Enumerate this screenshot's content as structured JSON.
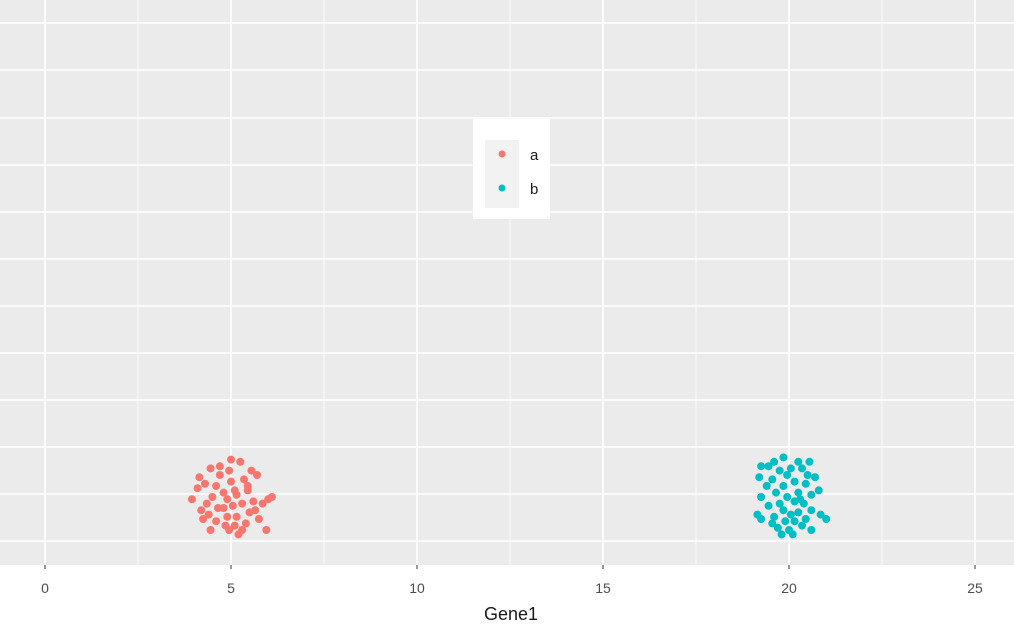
{
  "chart_data": {
    "type": "scatter",
    "title": "",
    "xlabel": "Gene1",
    "ylabel": "",
    "xlim": [
      0,
      25
    ],
    "x_ticks": [
      "0",
      "5",
      "10",
      "15",
      "20",
      "25"
    ],
    "grid": true,
    "legend_position": "top-center",
    "series": [
      {
        "name": "a",
        "color": "#F8766D",
        "points": [
          [
            4.95,
            0.12
          ],
          [
            5.25,
            0.16
          ],
          [
            5.7,
            0.1
          ],
          [
            4.7,
            0.1
          ],
          [
            5.35,
            0.08
          ],
          [
            4.45,
            0.13
          ],
          [
            5.0,
            0.07
          ],
          [
            4.6,
            0.05
          ],
          [
            5.45,
            0.03
          ],
          [
            4.8,
            0.02
          ],
          [
            4.3,
            0.06
          ],
          [
            5.15,
            0.01
          ],
          [
            4.1,
            0.04
          ],
          [
            5.6,
            -0.02
          ],
          [
            4.9,
            -0.01
          ],
          [
            4.35,
            -0.03
          ],
          [
            5.3,
            -0.03
          ],
          [
            5.05,
            -0.04
          ],
          [
            4.2,
            -0.06
          ],
          [
            5.85,
            -0.03
          ],
          [
            6.0,
            -0.01
          ],
          [
            3.95,
            -0.01
          ],
          [
            4.65,
            -0.05
          ],
          [
            5.5,
            -0.07
          ],
          [
            4.9,
            -0.09
          ],
          [
            4.25,
            -0.1
          ],
          [
            5.15,
            -0.09
          ],
          [
            5.75,
            -0.1
          ],
          [
            4.6,
            -0.11
          ],
          [
            5.4,
            -0.12
          ],
          [
            4.85,
            -0.13
          ],
          [
            5.1,
            -0.13
          ],
          [
            4.45,
            -0.15
          ],
          [
            4.95,
            -0.15
          ],
          [
            5.3,
            -0.15
          ],
          [
            5.2,
            -0.17
          ],
          [
            4.8,
            -0.05
          ],
          [
            5.1,
            0.03
          ],
          [
            4.5,
            0.0
          ],
          [
            5.55,
            0.12
          ],
          [
            6.1,
            0.0
          ],
          [
            4.7,
            0.14
          ],
          [
            5.0,
            0.17
          ],
          [
            5.45,
            0.05
          ],
          [
            4.4,
            -0.08
          ],
          [
            5.95,
            -0.15
          ],
          [
            4.15,
            0.09
          ],
          [
            5.65,
            -0.06
          ]
        ]
      },
      {
        "name": "b",
        "color": "#00BFC4",
        "points": [
          [
            19.85,
            0.18
          ],
          [
            20.25,
            0.16
          ],
          [
            20.55,
            0.16
          ],
          [
            19.45,
            0.14
          ],
          [
            20.05,
            0.13
          ],
          [
            19.25,
            0.14
          ],
          [
            19.75,
            0.12
          ],
          [
            20.35,
            0.13
          ],
          [
            20.7,
            0.09
          ],
          [
            19.2,
            0.09
          ],
          [
            19.95,
            0.1
          ],
          [
            20.15,
            0.07
          ],
          [
            19.55,
            0.08
          ],
          [
            20.45,
            0.06
          ],
          [
            19.4,
            0.05
          ],
          [
            19.85,
            0.05
          ],
          [
            20.25,
            0.02
          ],
          [
            19.65,
            0.02
          ],
          [
            20.6,
            0.01
          ],
          [
            19.25,
            0.0
          ],
          [
            19.95,
            0.0
          ],
          [
            20.15,
            -0.02
          ],
          [
            19.75,
            -0.03
          ],
          [
            20.4,
            -0.03
          ],
          [
            19.45,
            -0.04
          ],
          [
            20.6,
            -0.06
          ],
          [
            19.85,
            -0.06
          ],
          [
            20.25,
            -0.07
          ],
          [
            19.15,
            -0.08
          ],
          [
            20.05,
            -0.08
          ],
          [
            19.6,
            -0.09
          ],
          [
            20.85,
            -0.08
          ],
          [
            20.45,
            -0.1
          ],
          [
            19.25,
            -0.1
          ],
          [
            19.9,
            -0.11
          ],
          [
            20.15,
            -0.11
          ],
          [
            20.35,
            -0.13
          ],
          [
            19.7,
            -0.14
          ],
          [
            20.6,
            -0.15
          ],
          [
            20.0,
            -0.15
          ],
          [
            19.8,
            -0.17
          ],
          [
            20.1,
            -0.17
          ],
          [
            20.5,
            0.1
          ],
          [
            19.55,
            -0.12
          ],
          [
            21.0,
            -0.1
          ],
          [
            20.8,
            0.03
          ],
          [
            20.3,
            -0.01
          ],
          [
            19.6,
            0.16
          ]
        ]
      }
    ]
  }
}
